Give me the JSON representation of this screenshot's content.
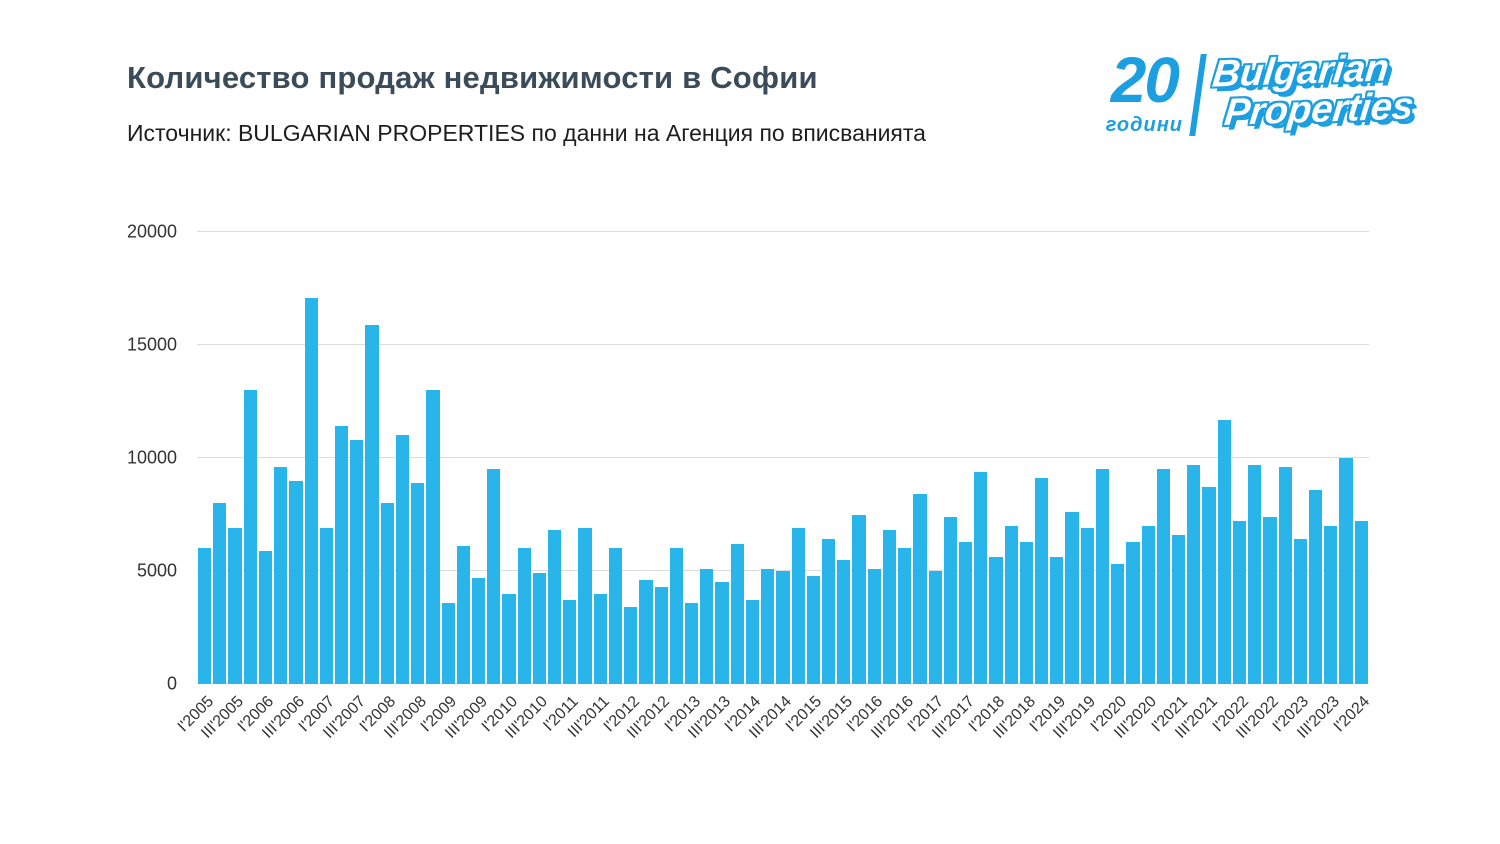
{
  "header": {
    "title": "Количество продаж недвижимости в Софии",
    "subtitle": "Источник: BULGARIAN PROPERTIES по данни на Агенция по вписванията"
  },
  "logo": {
    "number": "20",
    "years_label": "години",
    "brand_line1": "Bulgarian",
    "brand_line2": "Properties",
    "color": "#1b9fe0"
  },
  "chart_data": {
    "type": "bar",
    "title": "Количество продаж недвижимости в Софии",
    "xlabel": "",
    "ylabel": "",
    "ylim": [
      0,
      20000
    ],
    "yticks": [
      0,
      5000,
      10000,
      15000,
      20000
    ],
    "grid": true,
    "tick_every": 2,
    "bar_color": "#29b5ea",
    "grid_color": "#dcdcdc",
    "axis_text_color": "#333333",
    "legend": "none",
    "categories": [
      "I'2005",
      "II'2005",
      "III'2005",
      "IV'2005",
      "I'2006",
      "II'2006",
      "III'2006",
      "IV'2006",
      "I'2007",
      "II'2007",
      "III'2007",
      "IV'2007",
      "I'2008",
      "II'2008",
      "III'2008",
      "IV'2008",
      "I'2009",
      "II'2009",
      "III'2009",
      "IV'2009",
      "I'2010",
      "II'2010",
      "III'2010",
      "IV'2010",
      "I'2011",
      "II'2011",
      "III'2011",
      "IV'2011",
      "I'2012",
      "II'2012",
      "III'2012",
      "IV'2012",
      "I'2013",
      "II'2013",
      "III'2013",
      "IV'2013",
      "I'2014",
      "II'2014",
      "III'2014",
      "IV'2014",
      "I'2015",
      "II'2015",
      "III'2015",
      "IV'2015",
      "I'2016",
      "II'2016",
      "III'2016",
      "IV'2016",
      "I'2017",
      "II'2017",
      "III'2017",
      "IV'2017",
      "I'2018",
      "II'2018",
      "III'2018",
      "IV'2018",
      "I'2019",
      "II'2019",
      "III'2019",
      "IV'2019",
      "I'2020",
      "II'2020",
      "III'2020",
      "IV'2020",
      "I'2021",
      "II'2021",
      "III'2021",
      "IV'2021",
      "I'2022",
      "II'2022",
      "III'2022",
      "IV'2022",
      "I'2023",
      "II'2023",
      "III'2023",
      "IV'2023",
      "I'2024"
    ],
    "values": [
      6000,
      8000,
      6900,
      13000,
      5900,
      9600,
      9000,
      17100,
      6900,
      11400,
      10800,
      15900,
      8000,
      11000,
      8900,
      13000,
      3600,
      6100,
      4700,
      9500,
      4000,
      6000,
      4900,
      6800,
      3700,
      6900,
      4000,
      6000,
      3400,
      4600,
      4300,
      6000,
      3600,
      5100,
      4500,
      6200,
      3700,
      5100,
      5000,
      6900,
      4800,
      6400,
      5500,
      7500,
      5100,
      6800,
      6000,
      8400,
      5000,
      7400,
      6300,
      9400,
      5600,
      7000,
      6300,
      9100,
      5600,
      7600,
      6900,
      9500,
      5300,
      6300,
      7000,
      9500,
      6600,
      9700,
      8700,
      11700,
      7200,
      9700,
      7400,
      9600,
      6400,
      8600,
      7000,
      10000,
      7200
    ]
  }
}
